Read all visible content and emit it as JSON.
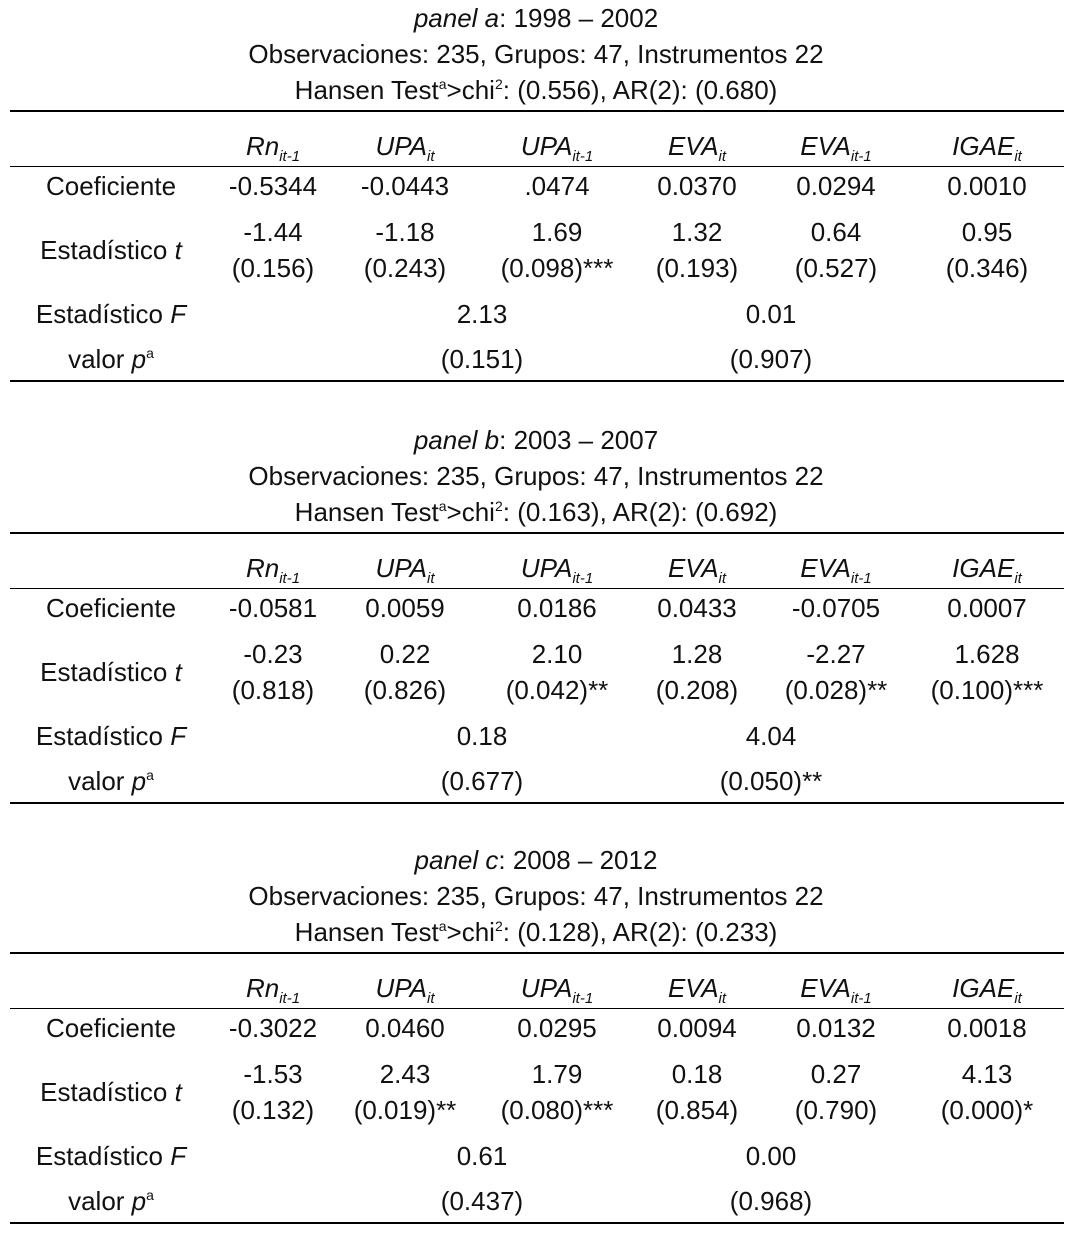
{
  "columns": [
    {
      "base": "Rn",
      "sub": "it-1"
    },
    {
      "base": "UPA",
      "sub": "it"
    },
    {
      "base": "UPA",
      "sub": "it-1"
    },
    {
      "base": "EVA",
      "sub": "it"
    },
    {
      "base": "EVA",
      "sub": "it-1"
    },
    {
      "base": "IGAE",
      "sub": "it"
    }
  ],
  "labels": {
    "coef": "Coeficiente",
    "tstat_prefix": "Estadístico ",
    "tstat_var": "t",
    "fstat_prefix": "Estadístico ",
    "fstat_var": "F",
    "pval_prefix": "valor ",
    "pval_var": "p",
    "pval_sup": "a"
  },
  "panels": [
    {
      "title_italic": "panel a",
      "title_rest": ": 1998 – 2002",
      "obs_line": "Observaciones: 235, Grupos: 47, Instrumentos 22",
      "hansen_pre": "Hansen Test",
      "hansen_sup": "a",
      "hansen_mid": ">chi",
      "hansen_sup2": "2",
      "hansen_post": ": (0.556), AR(2): (0.680)",
      "coef": [
        "-0.5344",
        "-0.0443",
        ".0474",
        "0.0370",
        "0.0294",
        "0.0010"
      ],
      "t": [
        "-1.44",
        "-1.18",
        "1.69",
        "1.32",
        "0.64",
        "0.95"
      ],
      "p": [
        "(0.156)",
        "(0.243)",
        "(0.098)***",
        "(0.193)",
        "(0.527)",
        "(0.346)"
      ],
      "F": [
        "2.13",
        "0.01"
      ],
      "Fp": [
        "(0.151)",
        "(0.907)"
      ]
    },
    {
      "title_italic": "panel b",
      "title_rest": ": 2003 – 2007",
      "obs_line": "Observaciones: 235, Grupos: 47, Instrumentos 22",
      "hansen_pre": "Hansen Test",
      "hansen_sup": "a",
      "hansen_mid": ">chi",
      "hansen_sup2": "2",
      "hansen_post": ": (0.163), AR(2): (0.692)",
      "coef": [
        "-0.0581",
        "0.0059",
        "0.0186",
        "0.0433",
        "-0.0705",
        "0.0007"
      ],
      "t": [
        "-0.23",
        "0.22",
        "2.10",
        "1.28",
        "-2.27",
        "1.628"
      ],
      "p": [
        "(0.818)",
        "(0.826)",
        "(0.042)**",
        "(0.208)",
        "(0.028)**",
        "(0.100)***"
      ],
      "F": [
        "0.18",
        "4.04"
      ],
      "Fp": [
        "(0.677)",
        "(0.050)**"
      ]
    },
    {
      "title_italic": "panel c",
      "title_rest": ": 2008 – 2012",
      "obs_line": "Observaciones: 235, Grupos: 47, Instrumentos 22",
      "hansen_pre": "Hansen Test",
      "hansen_sup": "a",
      "hansen_mid": ">chi",
      "hansen_sup2": "2",
      "hansen_post": ": (0.128), AR(2): (0.233)",
      "coef": [
        "-0.3022",
        "0.0460",
        "0.0295",
        "0.0094",
        "0.0132",
        "0.0018"
      ],
      "t": [
        "-1.53",
        "2.43",
        "1.79",
        "0.18",
        "0.27",
        "4.13"
      ],
      "p": [
        "(0.132)",
        "(0.019)**",
        "(0.080)***",
        "(0.854)",
        "(0.790)",
        "(0.000)*"
      ],
      "F": [
        "0.61",
        "0.00"
      ],
      "Fp": [
        "(0.437)",
        "(0.968)"
      ]
    }
  ]
}
